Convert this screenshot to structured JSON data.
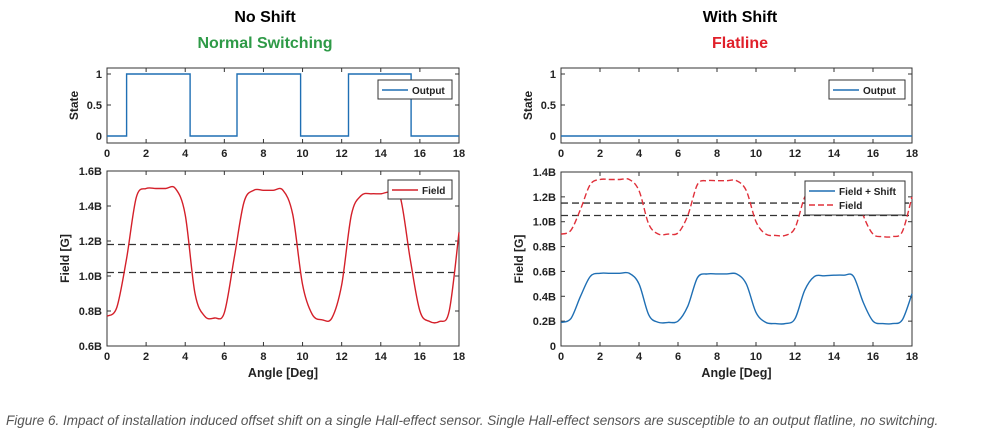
{
  "titles": {
    "left": "No Shift",
    "left_sub": "Normal Switching",
    "right": "With Shift",
    "right_sub": "Flatline",
    "left_sub_color": "#2e9a47",
    "right_sub_color": "#e0202a"
  },
  "caption": "Figure 6. Impact of installation induced offset shift on a single Hall-effect sensor. Single Hall-effect sensors are susceptible to an output flatline, no switching.",
  "chart_data": [
    {
      "type": "line",
      "panel": "left-top",
      "ylabel": "State",
      "xlim": [
        0,
        18
      ],
      "ylim": [
        0,
        1
      ],
      "xticks": [
        "0",
        "2",
        "4",
        "6",
        "8",
        "10",
        "12",
        "14",
        "16",
        "18"
      ],
      "yticks": [
        "0",
        "0.5",
        "1"
      ],
      "legend": "top-right",
      "series": [
        {
          "name": "Output",
          "color": "#1f6fb4",
          "style": "step",
          "x": [
            0,
            1.0,
            1.0,
            4.25,
            4.25,
            6.65,
            6.65,
            9.9,
            9.9,
            12.35,
            12.35,
            15.55,
            15.55,
            18
          ],
          "y": [
            0,
            0,
            1,
            1,
            0,
            0,
            1,
            1,
            0,
            0,
            1,
            1,
            0,
            0
          ]
        }
      ]
    },
    {
      "type": "line",
      "panel": "left-bottom",
      "xlabel": "Angle [Deg]",
      "ylabel": "Field [G]",
      "xlim": [
        0,
        18
      ],
      "ylim": [
        0.6,
        1.6
      ],
      "xticks": [
        "0",
        "2",
        "4",
        "6",
        "8",
        "10",
        "12",
        "14",
        "16",
        "18"
      ],
      "yticks": [
        "0.6B",
        "0.8B",
        "1.0B",
        "1.2B",
        "1.4B",
        "1.6B"
      ],
      "legend": "top-right",
      "thresholds": [
        1.18,
        1.02
      ],
      "series": [
        {
          "name": "Field",
          "color": "#d4202a",
          "style": "solid",
          "x": [
            0,
            0.5,
            1,
            1.5,
            2,
            2.5,
            3,
            3.5,
            4,
            4.5,
            5,
            5.5,
            6,
            6.5,
            7,
            7.5,
            8,
            8.5,
            9,
            9.5,
            10,
            10.5,
            11,
            11.5,
            12,
            12.5,
            13,
            13.5,
            14,
            14.5,
            15,
            15.5,
            16,
            16.5,
            17,
            17.5,
            18
          ],
          "y": [
            0.77,
            0.82,
            1.1,
            1.45,
            1.5,
            1.5,
            1.5,
            1.5,
            1.35,
            0.9,
            0.77,
            0.76,
            0.79,
            1.1,
            1.42,
            1.49,
            1.49,
            1.49,
            1.49,
            1.35,
            0.95,
            0.78,
            0.75,
            0.76,
            0.95,
            1.35,
            1.46,
            1.47,
            1.47,
            1.48,
            1.45,
            1.1,
            0.8,
            0.74,
            0.74,
            0.8,
            1.25
          ]
        }
      ]
    },
    {
      "type": "line",
      "panel": "right-top",
      "ylabel": "State",
      "xlim": [
        0,
        18
      ],
      "ylim": [
        0,
        1
      ],
      "xticks": [
        "0",
        "2",
        "4",
        "6",
        "8",
        "10",
        "12",
        "14",
        "16",
        "18"
      ],
      "yticks": [
        "0",
        "0.5",
        "1"
      ],
      "legend": "top-right",
      "series": [
        {
          "name": "Output",
          "color": "#1f6fb4",
          "style": "step",
          "x": [
            0,
            18
          ],
          "y": [
            0,
            0
          ]
        }
      ]
    },
    {
      "type": "line",
      "panel": "right-bottom",
      "xlabel": "Angle [Deg]",
      "ylabel": "Field [G]",
      "xlim": [
        0,
        18
      ],
      "ylim": [
        0,
        1.4
      ],
      "xticks": [
        "0",
        "2",
        "4",
        "6",
        "8",
        "10",
        "12",
        "14",
        "16",
        "18"
      ],
      "yticks": [
        "0",
        "0.2B",
        "0.4B",
        "0.6B",
        "0.8B",
        "1.0B",
        "1.2B",
        "1.4B"
      ],
      "legend": "top-right",
      "thresholds": [
        1.15,
        1.05
      ],
      "series": [
        {
          "name": "Field + Shift",
          "color": "#1f6fb4",
          "style": "solid",
          "x": [
            0,
            0.5,
            1,
            1.5,
            2,
            2.5,
            3,
            3.5,
            4,
            4.5,
            5,
            5.5,
            6,
            6.5,
            7,
            7.5,
            8,
            8.5,
            9,
            9.5,
            10,
            10.5,
            11,
            11.5,
            12,
            12.5,
            13,
            13.5,
            14,
            14.5,
            15,
            15.5,
            16,
            16.5,
            17,
            17.5,
            18
          ],
          "y": [
            0.19,
            0.22,
            0.4,
            0.56,
            0.585,
            0.585,
            0.585,
            0.585,
            0.5,
            0.25,
            0.19,
            0.19,
            0.2,
            0.32,
            0.55,
            0.58,
            0.58,
            0.58,
            0.58,
            0.5,
            0.27,
            0.19,
            0.18,
            0.18,
            0.22,
            0.45,
            0.56,
            0.565,
            0.57,
            0.57,
            0.56,
            0.35,
            0.2,
            0.18,
            0.18,
            0.21,
            0.42
          ]
        },
        {
          "name": "Field",
          "color": "#e0303a",
          "style": "dashed",
          "x": [
            0,
            0.5,
            1,
            1.5,
            2,
            2.5,
            3,
            3.5,
            4,
            4.5,
            5,
            5.5,
            6,
            6.5,
            7,
            7.5,
            8,
            8.5,
            9,
            9.5,
            10,
            10.5,
            11,
            11.5,
            12,
            12.5,
            13,
            13.5,
            14,
            14.5,
            15,
            15.5,
            16,
            16.5,
            17,
            17.5,
            18
          ],
          "y": [
            0.9,
            0.93,
            1.1,
            1.3,
            1.34,
            1.34,
            1.34,
            1.34,
            1.25,
            0.98,
            0.9,
            0.9,
            0.91,
            1.05,
            1.3,
            1.33,
            1.33,
            1.33,
            1.33,
            1.25,
            1.0,
            0.9,
            0.89,
            0.89,
            0.95,
            1.2,
            1.31,
            1.32,
            1.32,
            1.32,
            1.3,
            1.05,
            0.9,
            0.88,
            0.88,
            0.92,
            1.2
          ]
        }
      ]
    }
  ]
}
